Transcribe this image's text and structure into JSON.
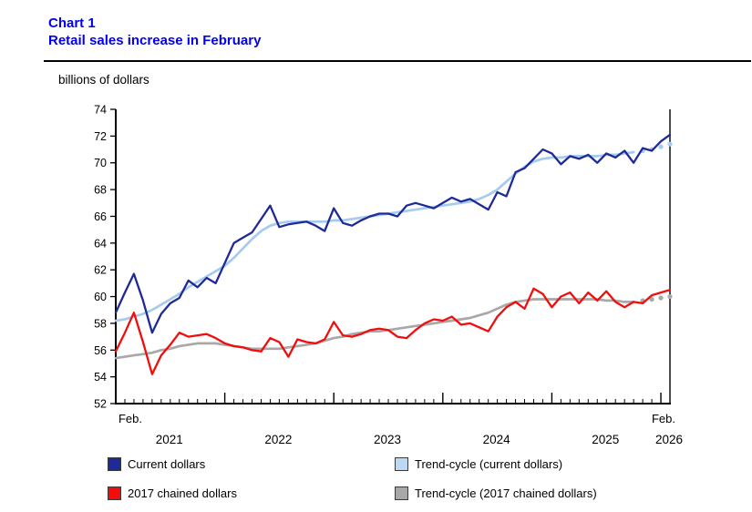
{
  "page": {
    "title_line1": "Chart 1",
    "title_line2": "Retail sales increase in February",
    "unit_label": "billions of dollars"
  },
  "colors": {
    "title_text": "#0000ee",
    "axis": "#000000",
    "current_dollars": "#1e2a96",
    "trend_current": "#a6cbef",
    "chained_dollars": "#f20d0d",
    "trend_chained": "#a8a8a8"
  },
  "chart_data": {
    "type": "line",
    "title": "Retail sales increase in February",
    "ylabel": "billions of dollars",
    "ylim": [
      52,
      74
    ],
    "ytick_step": 2,
    "grid": false,
    "legend_position": "bottom",
    "x_first_label": "Feb.",
    "x_last_label": "Feb.",
    "year_labels": [
      "2021",
      "2022",
      "2023",
      "2024",
      "2025",
      "2026"
    ],
    "months": [
      "2021-01",
      "2021-02",
      "2021-03",
      "2021-04",
      "2021-05",
      "2021-06",
      "2021-07",
      "2021-08",
      "2021-09",
      "2021-10",
      "2021-11",
      "2021-12",
      "2022-01",
      "2022-02",
      "2022-03",
      "2022-04",
      "2022-05",
      "2022-06",
      "2022-07",
      "2022-08",
      "2022-09",
      "2022-10",
      "2022-11",
      "2022-12",
      "2023-01",
      "2023-02",
      "2023-03",
      "2023-04",
      "2023-05",
      "2023-06",
      "2023-07",
      "2023-08",
      "2023-09",
      "2023-10",
      "2023-11",
      "2023-12",
      "2024-01",
      "2024-02",
      "2024-03",
      "2024-04",
      "2024-05",
      "2024-06",
      "2024-07",
      "2024-08",
      "2024-09",
      "2024-10",
      "2024-11",
      "2024-12",
      "2025-01",
      "2025-02",
      "2025-03",
      "2025-04",
      "2025-05",
      "2025-06",
      "2025-07",
      "2025-08",
      "2025-09",
      "2025-10",
      "2025-11",
      "2025-12",
      "2026-01",
      "2026-02"
    ],
    "series": [
      {
        "name": "Current dollars",
        "color": "#1e2a96",
        "style": "solid",
        "width": 2.3,
        "values": [
          58.8,
          60.3,
          61.7,
          59.7,
          57.3,
          58.7,
          59.5,
          59.9,
          61.2,
          60.7,
          61.4,
          61.0,
          62.5,
          64.0,
          64.4,
          64.8,
          65.8,
          66.8,
          65.2,
          65.4,
          65.5,
          65.6,
          65.3,
          64.9,
          66.6,
          65.5,
          65.3,
          65.7,
          66.0,
          66.2,
          66.2,
          66.0,
          66.8,
          67.0,
          66.8,
          66.6,
          67.0,
          67.4,
          67.1,
          67.3,
          66.9,
          66.5,
          67.8,
          67.5,
          69.3,
          69.6,
          70.3,
          71.0,
          70.7,
          69.9,
          70.5,
          70.3,
          70.6,
          70.0,
          70.7,
          70.4,
          70.9,
          70.0,
          71.1,
          70.9,
          71.6,
          72.1
        ]
      },
      {
        "name": "Trend-cycle (current dollars)",
        "color": "#a6cbef",
        "style": "solid_with_dotted_tail",
        "dotted_tail": 4,
        "width": 2.7,
        "values": [
          58.2,
          58.3,
          58.5,
          58.7,
          59.0,
          59.4,
          59.8,
          60.2,
          60.7,
          61.1,
          61.5,
          61.9,
          62.3,
          62.9,
          63.6,
          64.3,
          64.9,
          65.3,
          65.5,
          65.6,
          65.6,
          65.6,
          65.6,
          65.6,
          65.7,
          65.7,
          65.8,
          65.9,
          66.0,
          66.1,
          66.2,
          66.3,
          66.4,
          66.5,
          66.6,
          66.7,
          66.8,
          66.9,
          67.0,
          67.1,
          67.3,
          67.6,
          68.0,
          68.6,
          69.2,
          69.7,
          70.1,
          70.3,
          70.4,
          70.4,
          70.5,
          70.5,
          70.5,
          70.5,
          70.6,
          70.6,
          70.7,
          70.8,
          70.9,
          71.0,
          71.2,
          71.4
        ]
      },
      {
        "name": "2017 chained dollars",
        "color": "#f20d0d",
        "style": "solid",
        "width": 2.3,
        "values": [
          55.9,
          57.3,
          58.8,
          56.6,
          54.2,
          55.6,
          56.4,
          57.3,
          57.0,
          57.1,
          57.2,
          56.9,
          56.5,
          56.3,
          56.2,
          56.0,
          55.9,
          56.9,
          56.6,
          55.5,
          56.8,
          56.6,
          56.5,
          56.8,
          58.1,
          57.1,
          57.0,
          57.2,
          57.5,
          57.6,
          57.5,
          57.0,
          56.9,
          57.5,
          58.0,
          58.3,
          58.2,
          58.5,
          57.9,
          58.0,
          57.7,
          57.4,
          58.5,
          59.2,
          59.6,
          59.1,
          60.6,
          60.2,
          59.2,
          60.0,
          60.3,
          59.5,
          60.3,
          59.7,
          60.4,
          59.6,
          59.2,
          59.6,
          59.5,
          60.1,
          60.3,
          60.5
        ]
      },
      {
        "name": "Trend-cycle (2017 chained dollars)",
        "color": "#a8a8a8",
        "style": "solid_with_dotted_tail",
        "dotted_tail": 4,
        "width": 2.7,
        "values": [
          55.4,
          55.5,
          55.6,
          55.7,
          55.8,
          56.0,
          56.1,
          56.3,
          56.4,
          56.5,
          56.5,
          56.5,
          56.4,
          56.3,
          56.2,
          56.1,
          56.1,
          56.1,
          56.1,
          56.2,
          56.3,
          56.4,
          56.5,
          56.7,
          56.9,
          57.0,
          57.2,
          57.3,
          57.4,
          57.4,
          57.5,
          57.6,
          57.7,
          57.8,
          57.9,
          58.0,
          58.1,
          58.2,
          58.3,
          58.4,
          58.6,
          58.8,
          59.1,
          59.4,
          59.6,
          59.7,
          59.8,
          59.8,
          59.8,
          59.8,
          59.8,
          59.8,
          59.8,
          59.8,
          59.7,
          59.7,
          59.6,
          59.6,
          59.7,
          59.8,
          59.9,
          60.0
        ]
      }
    ],
    "legend": [
      {
        "label": "Current dollars",
        "color": "#1e2a96"
      },
      {
        "label": "Trend-cycle (current dollars)",
        "color": "#bdd9f2"
      },
      {
        "label": "2017 chained dollars",
        "color": "#f20d0d"
      },
      {
        "label": "Trend-cycle (2017 chained dollars)",
        "color": "#a8a8a8"
      }
    ]
  }
}
